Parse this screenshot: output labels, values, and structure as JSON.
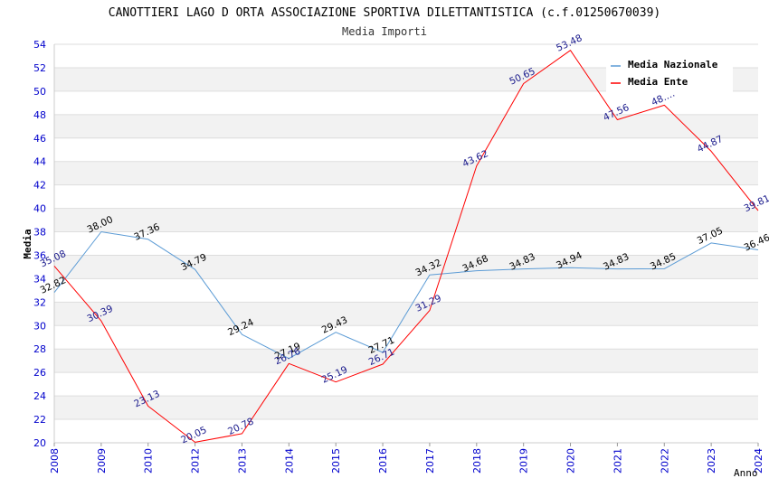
{
  "chart_data": {
    "type": "line",
    "title": "CANOTTIERI LAGO D ORTA ASSOCIAZIONE SPORTIVA DILETTANTISTICA (c.f.01250670039)",
    "subtitle": "Media Importi",
    "xlabel": "Anno",
    "ylabel": "Media",
    "ylim": [
      20,
      54
    ],
    "ytick_step": 2,
    "grid": true,
    "legend_position": "top-right",
    "categories": [
      "2008",
      "2009",
      "2010",
      "2012",
      "2013",
      "2014",
      "2015",
      "2016",
      "2017",
      "2018",
      "2019",
      "2020",
      "2021",
      "2022",
      "2023",
      "2024"
    ],
    "series": [
      {
        "name": "Media Nazionale",
        "color": "#5b9bd5",
        "label_color": "#000000",
        "values": [
          32.82,
          38.0,
          37.36,
          34.79,
          29.24,
          27.19,
          29.43,
          27.71,
          34.32,
          34.68,
          34.83,
          34.94,
          34.83,
          34.85,
          37.05,
          36.46
        ],
        "labels": [
          "32.82",
          "38.00",
          "37.36",
          "34.79",
          "29.24",
          "27.19",
          "29.43",
          "27.71",
          "34.32",
          "34.68",
          "34.83",
          "34.94",
          "34.83",
          "34.85",
          "37.05",
          "36.46"
        ]
      },
      {
        "name": "Media Ente",
        "color": "#ff0000",
        "label_color": "#1a1a8c",
        "values": [
          35.08,
          30.39,
          23.13,
          20.05,
          20.78,
          26.76,
          25.19,
          26.71,
          31.29,
          43.62,
          50.65,
          53.48,
          47.56,
          48.8,
          44.87,
          39.81
        ],
        "labels": [
          "35.08",
          "30.39",
          "23.13",
          "20.05",
          "20.78",
          "26.76",
          "25.19",
          "26.71",
          "31.29",
          "43.62",
          "50.65",
          "53.48",
          "47.56",
          "48.…",
          "44.87",
          "39.81"
        ]
      }
    ]
  }
}
